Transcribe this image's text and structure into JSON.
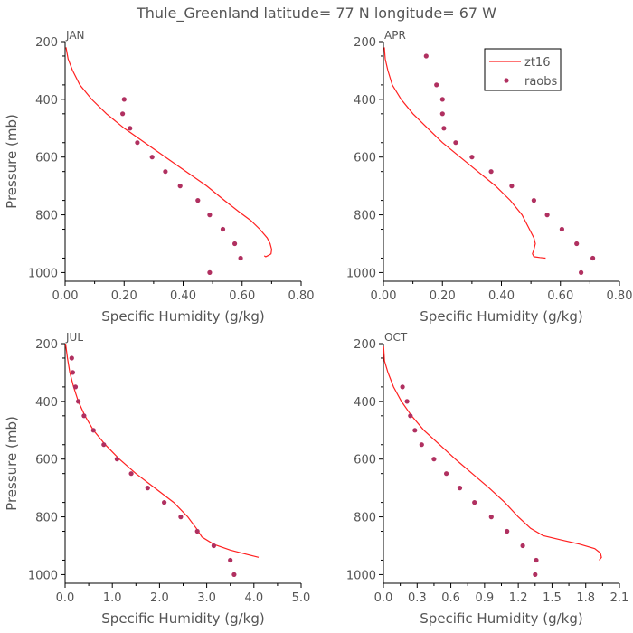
{
  "figure": {
    "title": "Thule_Greenland  latitude= 77 N longitude= 67 W",
    "colors": {
      "model": "#ff2020",
      "obs": "#b03060",
      "axis": "#000000",
      "text": "#555555"
    },
    "legend": {
      "location": "top-right of APR panel",
      "model_label": "zt16",
      "obs_label": "raobs"
    }
  },
  "chart_data": [
    {
      "type": "line",
      "title": "JAN",
      "xlabel": "Specific Humidity (g/kg)",
      "ylabel": "Pressure (mb)",
      "xlim": [
        0,
        0.8
      ],
      "ylim": [
        1030,
        200
      ],
      "xticks": [
        0,
        0.2,
        0.4,
        0.6,
        0.8
      ],
      "xtick_labels": [
        "0.00",
        "0.20",
        "0.40",
        "0.60",
        "0.80"
      ],
      "yticks": [
        200,
        400,
        600,
        800,
        1000
      ],
      "series": [
        {
          "name": "zt16",
          "style": "line",
          "x": [
            0.003,
            0.01,
            0.025,
            0.05,
            0.09,
            0.14,
            0.2,
            0.27,
            0.34,
            0.41,
            0.48,
            0.54,
            0.59,
            0.63,
            0.66,
            0.685,
            0.695,
            0.7,
            0.698,
            0.69,
            0.68,
            0.675
          ],
          "y": [
            220,
            260,
            300,
            350,
            400,
            450,
            500,
            550,
            600,
            650,
            700,
            750,
            790,
            820,
            850,
            880,
            900,
            920,
            935,
            940,
            945,
            942
          ]
        },
        {
          "name": "raobs",
          "style": "markers",
          "x": [
            0.2,
            0.195,
            0.22,
            0.245,
            0.295,
            0.34,
            0.39,
            0.45,
            0.49,
            0.535,
            0.575,
            0.595,
            0.49
          ],
          "y": [
            400,
            450,
            500,
            550,
            600,
            650,
            700,
            750,
            800,
            850,
            900,
            950,
            1000
          ]
        }
      ]
    },
    {
      "type": "line",
      "title": "APR",
      "xlabel": "Specific Humidity (g/kg)",
      "ylabel": "",
      "xlim": [
        0,
        0.8
      ],
      "ylim": [
        1030,
        200
      ],
      "xticks": [
        0,
        0.2,
        0.4,
        0.6,
        0.8
      ],
      "xtick_labels": [
        "0.00",
        "0.20",
        "0.40",
        "0.60",
        "0.80"
      ],
      "yticks": [
        200,
        400,
        600,
        800,
        1000
      ],
      "series": [
        {
          "name": "zt16",
          "style": "line",
          "x": [
            0.003,
            0.006,
            0.015,
            0.03,
            0.06,
            0.1,
            0.15,
            0.2,
            0.26,
            0.32,
            0.38,
            0.43,
            0.47,
            0.495,
            0.51,
            0.515,
            0.51,
            0.505,
            0.51,
            0.53,
            0.55
          ],
          "y": [
            220,
            260,
            300,
            350,
            400,
            450,
            500,
            550,
            600,
            650,
            700,
            750,
            800,
            850,
            880,
            900,
            920,
            935,
            945,
            948,
            950
          ]
        },
        {
          "name": "raobs",
          "style": "markers",
          "x": [
            0.145,
            0.18,
            0.2,
            0.2,
            0.205,
            0.245,
            0.3,
            0.365,
            0.435,
            0.51,
            0.555,
            0.605,
            0.655,
            0.71,
            0.67
          ],
          "y": [
            250,
            350,
            400,
            450,
            500,
            550,
            600,
            650,
            700,
            750,
            800,
            850,
            900,
            950,
            1000
          ]
        }
      ]
    },
    {
      "type": "line",
      "title": "JUL",
      "xlabel": "Specific Humidity (g/kg)",
      "ylabel": "Pressure (mb)",
      "xlim": [
        0,
        5
      ],
      "ylim": [
        1030,
        200
      ],
      "xticks": [
        0,
        1,
        2,
        3,
        4,
        5
      ],
      "xtick_labels": [
        "0.0",
        "1.0",
        "2.0",
        "3.0",
        "4.0",
        "5.0"
      ],
      "yticks": [
        200,
        400,
        600,
        800,
        1000
      ],
      "series": [
        {
          "name": "zt16",
          "style": "line",
          "x": [
            0.01,
            0.05,
            0.1,
            0.18,
            0.28,
            0.42,
            0.6,
            0.85,
            1.15,
            1.5,
            1.9,
            2.3,
            2.6,
            2.78,
            2.9,
            3.15,
            3.5,
            3.85,
            4.1
          ],
          "y": [
            200,
            250,
            300,
            350,
            400,
            450,
            500,
            550,
            600,
            650,
            700,
            750,
            800,
            840,
            870,
            895,
            915,
            930,
            940
          ]
        },
        {
          "name": "raobs",
          "style": "markers",
          "x": [
            0.14,
            0.16,
            0.22,
            0.28,
            0.4,
            0.6,
            0.82,
            1.1,
            1.4,
            1.75,
            2.1,
            2.45,
            2.8,
            3.15,
            3.5,
            3.58
          ],
          "y": [
            250,
            300,
            350,
            400,
            450,
            500,
            550,
            600,
            650,
            700,
            750,
            800,
            850,
            900,
            950,
            1000
          ]
        }
      ]
    },
    {
      "type": "line",
      "title": "OCT",
      "xlabel": "Specific Humidity (g/kg)",
      "ylabel": "",
      "xlim": [
        0,
        2.1
      ],
      "ylim": [
        1030,
        200
      ],
      "xticks": [
        0,
        0.3,
        0.6,
        0.9,
        1.2,
        1.5,
        1.8,
        2.1
      ],
      "xtick_labels": [
        "0.0",
        "0.3",
        "0.6",
        "0.9",
        "1.2",
        "1.5",
        "1.8",
        "2.1"
      ],
      "yticks": [
        200,
        400,
        600,
        800,
        1000
      ],
      "series": [
        {
          "name": "zt16",
          "style": "line",
          "x": [
            0.002,
            0.01,
            0.04,
            0.09,
            0.16,
            0.25,
            0.36,
            0.5,
            0.64,
            0.79,
            0.94,
            1.08,
            1.2,
            1.31,
            1.42,
            1.58,
            1.75,
            1.88,
            1.93,
            1.94,
            1.92
          ],
          "y": [
            210,
            260,
            300,
            350,
            400,
            450,
            500,
            550,
            600,
            650,
            700,
            750,
            800,
            840,
            865,
            880,
            895,
            910,
            925,
            940,
            950
          ]
        },
        {
          "name": "raobs",
          "style": "markers",
          "x": [
            0.17,
            0.21,
            0.24,
            0.28,
            0.34,
            0.45,
            0.56,
            0.68,
            0.81,
            0.96,
            1.1,
            1.24,
            1.36,
            1.35
          ],
          "y": [
            350,
            400,
            450,
            500,
            550,
            600,
            650,
            700,
            750,
            800,
            850,
            900,
            950,
            1000
          ]
        }
      ]
    }
  ]
}
